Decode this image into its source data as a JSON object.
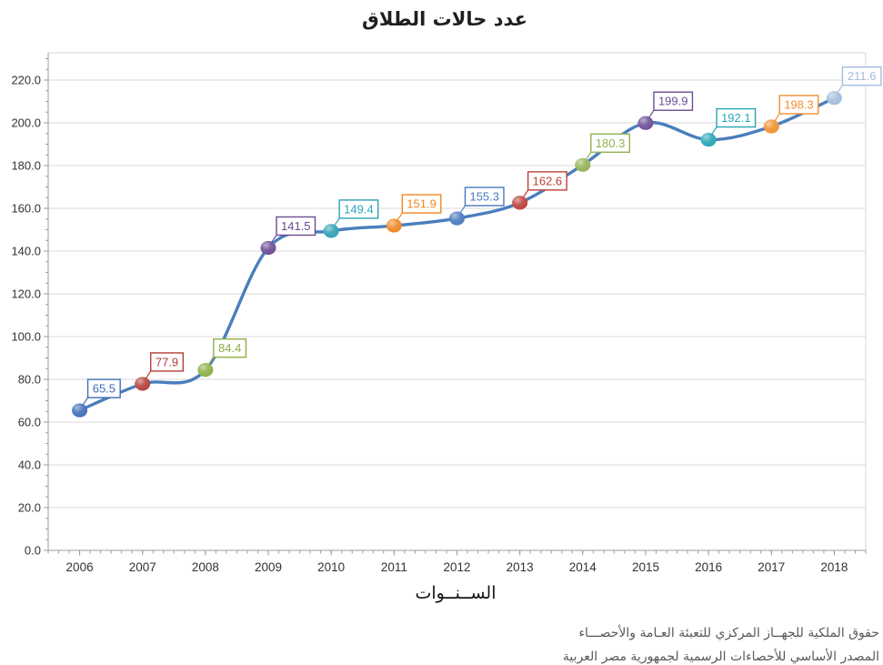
{
  "title": "عدد حالات الطلاق",
  "x_axis_title": "الســنــوات",
  "footer": {
    "line1": "حقوق الملكية للجهــاز المركزي للتعبئة العـامة والأحصـــاء",
    "line2": "المصدر الأساسي للأحصاءات الرسمية لجمهورية مصر العربية"
  },
  "chart_data": {
    "type": "line",
    "title": "عدد حالات الطلاق",
    "xlabel": "الســنــوات",
    "ylabel": "",
    "categories": [
      "2006",
      "2007",
      "2008",
      "2009",
      "2010",
      "2011",
      "2012",
      "2013",
      "2014",
      "2015",
      "2016",
      "2017",
      "2018"
    ],
    "values": [
      65.5,
      77.9,
      84.4,
      141.5,
      149.4,
      151.9,
      155.3,
      162.6,
      180.3,
      199.9,
      192.1,
      198.3,
      211.6
    ],
    "data_labels": [
      "65.5",
      "77.9",
      "84.4",
      "141.5",
      "149.4",
      "151.9",
      "155.3",
      "162.6",
      "180.3",
      "199.9",
      "192.1",
      "198.3",
      "211.6"
    ],
    "ytick_labels": [
      "0.0",
      "20.0",
      "40.0",
      "60.0",
      "80.0",
      "100.0",
      "120.0",
      "140.0",
      "160.0",
      "180.0",
      "200.0",
      "220.0"
    ],
    "ylim": [
      0,
      220
    ],
    "ytick_step": 20,
    "grid": "horizontal",
    "legend": "none",
    "smoothed_line": true,
    "line_color": "#4A7EBD",
    "point_colors": [
      "#3E6DB5",
      "#B23E37",
      "#8CAE44",
      "#6B4B92",
      "#2EA1B5",
      "#EE8622",
      "#4A79BF",
      "#BC4038",
      "#93B254",
      "#6E4E95",
      "#27A5B6",
      "#F0902E",
      "#A4BDDB"
    ],
    "axis_color": "#9B9B9B",
    "grid_color": "#D9D9D9",
    "plot_border_color": "#D6D6D6",
    "tick_label_color": "#333333"
  }
}
